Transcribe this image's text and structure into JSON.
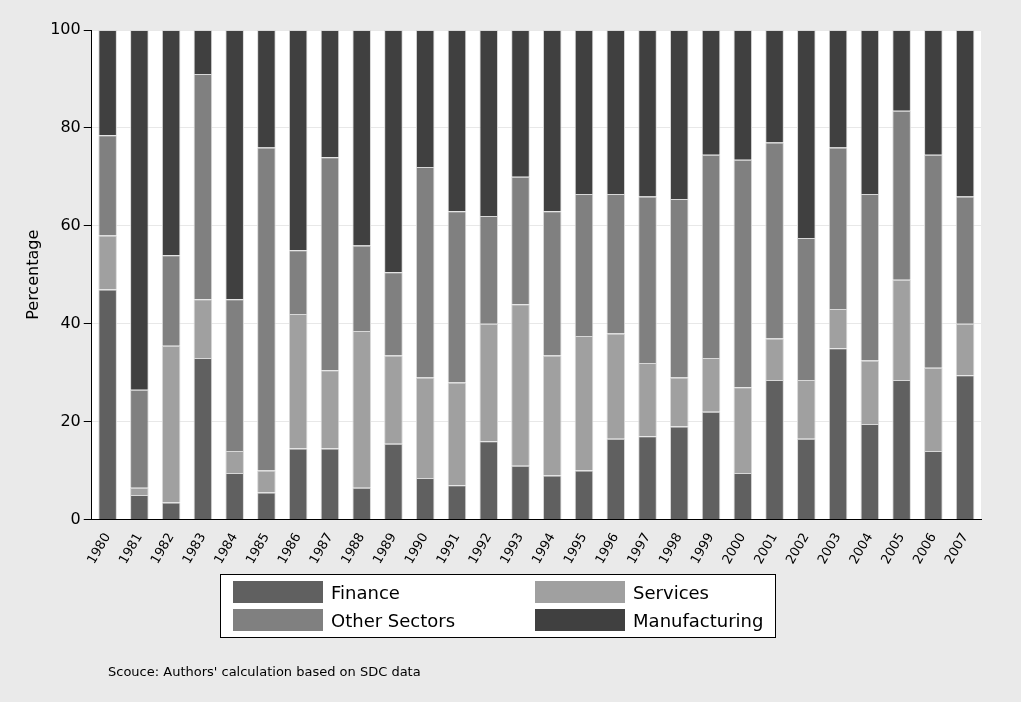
{
  "chart_data": {
    "type": "bar",
    "stacked": true,
    "ylabel": "Percentage",
    "ylim": [
      0,
      100
    ],
    "yticks": [
      0,
      20,
      40,
      60,
      80,
      100
    ],
    "grid": "y",
    "legend": "bottom",
    "categories": [
      "1980",
      "1981",
      "1982",
      "1983",
      "1984",
      "1985",
      "1986",
      "1987",
      "1988",
      "1989",
      "1990",
      "1991",
      "1992",
      "1993",
      "1994",
      "1995",
      "1996",
      "1997",
      "1998",
      "1999",
      "2000",
      "2001",
      "2002",
      "2003",
      "2004",
      "2005",
      "2006",
      "2007"
    ],
    "series": [
      {
        "name": "Finance",
        "color": "#606060",
        "values": [
          47,
          5,
          3.5,
          33,
          9.5,
          5.5,
          14.5,
          14.5,
          6.5,
          15.5,
          8.5,
          7,
          16,
          11,
          9,
          10,
          16.5,
          17,
          19,
          22,
          9.5,
          28.5,
          16.5,
          35,
          19.5,
          28.5,
          14,
          29.5
        ]
      },
      {
        "name": "Services",
        "color": "#a0a0a0",
        "values": [
          11,
          1.5,
          32,
          12,
          4.5,
          4.5,
          27.5,
          16,
          32,
          18,
          20.5,
          21,
          24,
          33,
          24.5,
          27.5,
          21.5,
          15,
          10,
          11,
          17.5,
          8.5,
          12,
          8,
          13,
          20.5,
          17,
          10.5
        ]
      },
      {
        "name": "Other Sectors",
        "color": "#808080",
        "values": [
          20.5,
          20,
          18.5,
          46,
          31,
          66,
          13,
          43.5,
          17.5,
          17,
          43,
          35,
          22,
          26,
          29.5,
          29,
          28.5,
          34,
          36.5,
          41.5,
          46.5,
          40,
          29,
          33,
          34,
          34.5,
          43.5,
          26
        ]
      },
      {
        "name": "Manufacturing",
        "color": "#404040",
        "values": [
          21.5,
          73.5,
          46,
          9,
          55,
          24,
          45,
          26,
          44,
          49.5,
          28,
          37,
          38,
          30,
          37,
          33.5,
          33.5,
          34,
          34.5,
          25.5,
          26.5,
          23,
          42.5,
          24,
          33.5,
          16.5,
          25.5,
          34
        ]
      }
    ],
    "annotations": [
      "Scouce: Authors' calculation based on SDC data"
    ]
  }
}
